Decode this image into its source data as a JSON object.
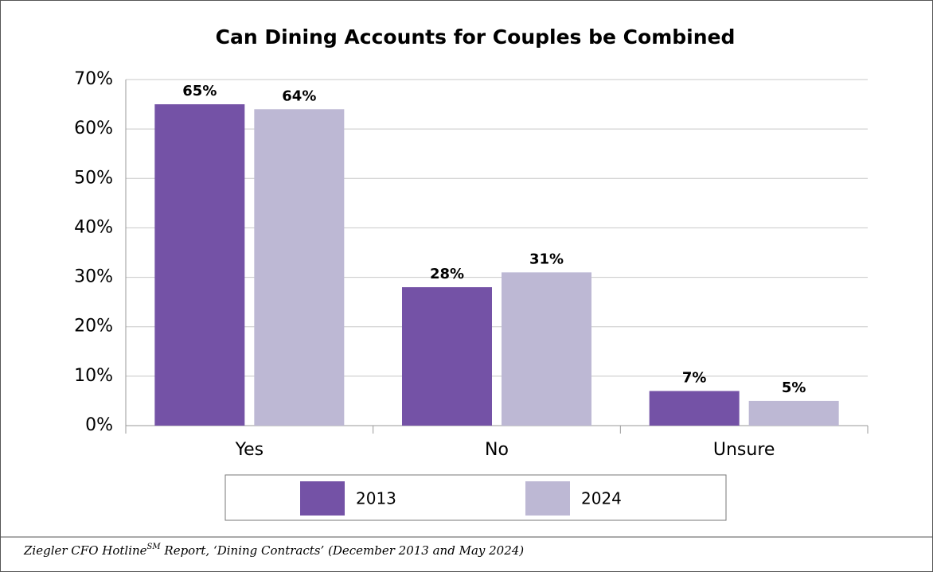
{
  "chart_data": {
    "type": "bar",
    "title": "Can Dining Accounts for Couples be Combined",
    "categories": [
      "Yes",
      "No",
      "Unsure"
    ],
    "series": [
      {
        "name": "2013",
        "color": "#7452a6",
        "values": [
          65,
          28,
          7
        ],
        "value_labels": [
          "65%",
          "28%",
          "7%"
        ]
      },
      {
        "name": "2024",
        "color": "#bdb8d4",
        "values": [
          64,
          31,
          5
        ],
        "value_labels": [
          "64%",
          "31%",
          "5%"
        ]
      }
    ],
    "ylim": [
      0,
      70
    ],
    "yticks": [
      {
        "value": 0,
        "label": "0%"
      },
      {
        "value": 10,
        "label": "10%"
      },
      {
        "value": 20,
        "label": "20%"
      },
      {
        "value": 30,
        "label": "30%"
      },
      {
        "value": 40,
        "label": "40%"
      },
      {
        "value": 50,
        "label": "50%"
      },
      {
        "value": 60,
        "label": "60%"
      },
      {
        "value": 70,
        "label": "70%"
      }
    ],
    "grid": true,
    "legend": "bottom",
    "source": [
      "Ziegler CFO Hotline",
      "SM",
      " Report, ‘Dining Contracts’ (December 2013 and May 2024)"
    ]
  }
}
